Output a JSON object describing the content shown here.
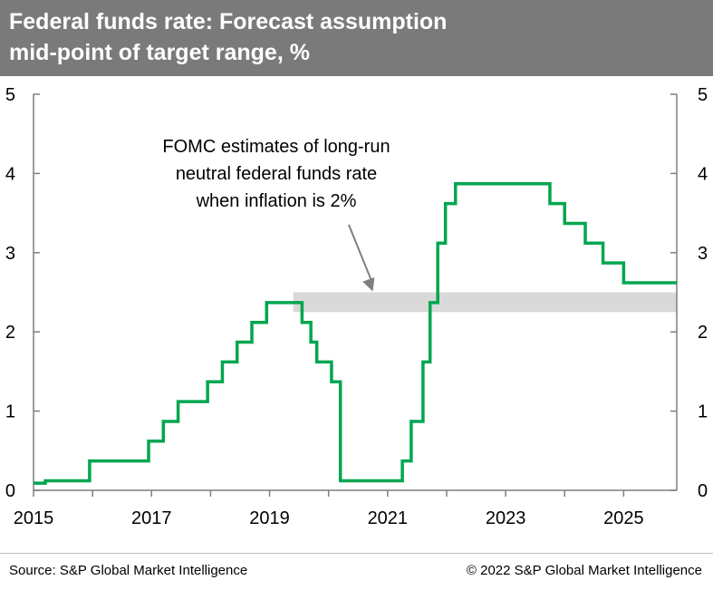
{
  "header": {
    "title_line1": "Federal funds rate: Forecast assumption",
    "title_line2": "mid-point of target range, %",
    "background": "#7a7a7a"
  },
  "footer": {
    "source": "Source: S&P Global Market Intelligence",
    "copyright": "© 2022 S&P Global Market Intelligence"
  },
  "chart_data": {
    "type": "line",
    "title": "Federal funds rate: Forecast assumption mid-point of target range, %",
    "xlim": [
      2015.0,
      2025.9
    ],
    "ylim": [
      0,
      5
    ],
    "x_ticks": [
      "2015",
      "2017",
      "2019",
      "2021",
      "2023",
      "2025"
    ],
    "y_ticks": [
      "0",
      "1",
      "2",
      "3",
      "4",
      "5"
    ],
    "grid": false,
    "legend": "none",
    "dual_y_axis": true,
    "series": [
      {
        "color": "#00a650",
        "step": true,
        "x": [
          2015.0,
          2015.2,
          2015.95,
          2016.95,
          2017.2,
          2017.45,
          2017.95,
          2018.2,
          2018.45,
          2018.7,
          2018.95,
          2019.55,
          2019.7,
          2019.8,
          2020.05,
          2020.2,
          2021.25,
          2021.4,
          2021.6,
          2021.72,
          2021.85,
          2021.98,
          2022.15,
          2022.3,
          2022.45,
          2023.75,
          2024.0,
          2024.35,
          2024.65,
          2025.0,
          2025.9
        ],
        "y": [
          0.09,
          0.12,
          0.37,
          0.62,
          0.87,
          1.12,
          1.37,
          1.62,
          1.87,
          2.12,
          2.37,
          2.12,
          1.87,
          1.62,
          1.37,
          0.12,
          0.37,
          0.87,
          1.62,
          2.37,
          3.12,
          3.62,
          3.87,
          3.87,
          3.87,
          3.62,
          3.37,
          3.12,
          2.87,
          2.62,
          2.62
        ]
      }
    ],
    "band": {
      "y_low": 2.25,
      "y_high": 2.5,
      "x_start": 2019.4,
      "x_end": 2025.9,
      "color": "#d9d9d9"
    },
    "annotation": {
      "lines": [
        "FOMC estimates of long-run",
        "neutral federal funds rate",
        "when inflation is 2%"
      ],
      "arrow_to": {
        "x": 2020.75,
        "y": 2.5
      }
    }
  }
}
